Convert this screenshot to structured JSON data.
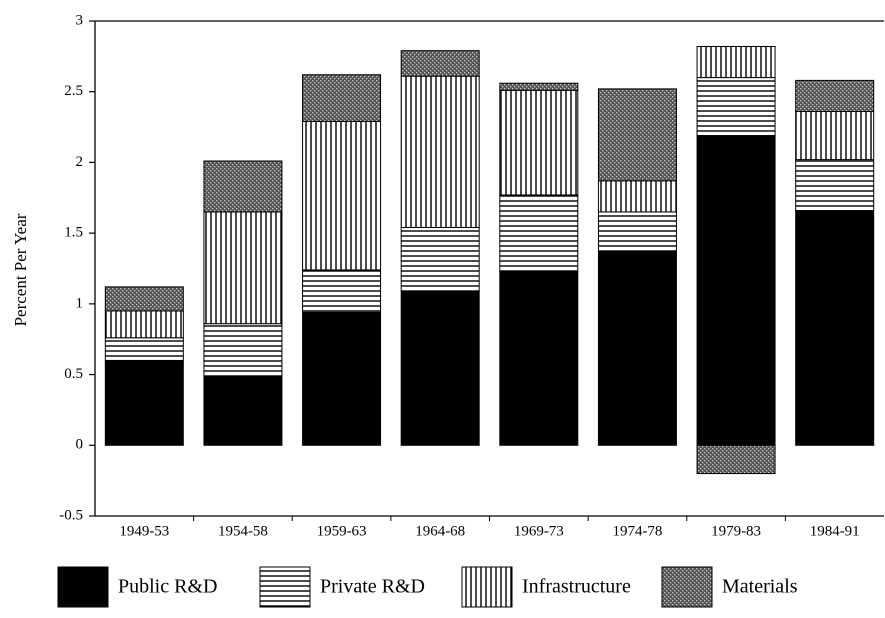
{
  "chart_data": {
    "type": "stacked-bar",
    "y_label": "Percent Per Year",
    "categories": [
      "1949-53",
      "1954-58",
      "1959-63",
      "1964-68",
      "1969-73",
      "1974-78",
      "1979-83",
      "1984-91"
    ],
    "series": [
      {
        "name": "Public R&D",
        "color": "#000000",
        "pattern": "solid",
        "values": [
          0.6,
          0.49,
          0.94,
          1.09,
          1.23,
          1.37,
          2.19,
          1.66
        ]
      },
      {
        "name": "Private R&D",
        "color": "#000000",
        "pattern": "horizontal",
        "values": [
          0.16,
          0.37,
          0.3,
          0.45,
          0.54,
          0.28,
          0.41,
          0.36
        ]
      },
      {
        "name": "Infrastructure",
        "color": "#000000",
        "pattern": "vertical",
        "values": [
          0.19,
          0.79,
          1.05,
          1.07,
          0.74,
          0.22,
          0.22,
          0.34
        ]
      },
      {
        "name": "Materials",
        "color": "#000000",
        "pattern": "stipple",
        "values": [
          0.17,
          0.36,
          0.33,
          0.18,
          0.05,
          0.65,
          -0.2,
          0.22
        ]
      }
    ],
    "ylim": [
      -0.5,
      3
    ],
    "yticks": [
      -0.5,
      0,
      0.5,
      1,
      1.5,
      2,
      2.5,
      3
    ],
    "grid": false,
    "legend": "bottom"
  }
}
